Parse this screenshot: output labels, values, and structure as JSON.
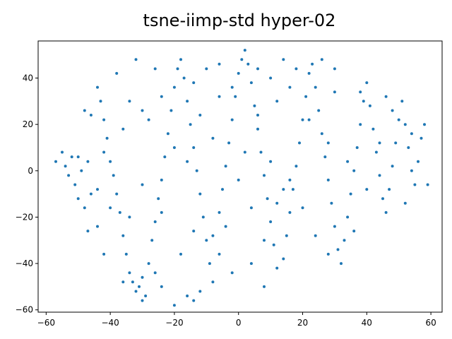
{
  "chart_data": {
    "type": "scatter",
    "title": "tsne-iimp-std hyper-02",
    "xlabel": "",
    "ylabel": "",
    "xlim": [
      -62.5,
      63.5
    ],
    "ylim": [
      -61,
      56
    ],
    "xticks": [
      -60,
      -40,
      -20,
      0,
      20,
      40,
      60
    ],
    "yticks": [
      -60,
      -40,
      -20,
      0,
      20,
      40
    ],
    "grid": false,
    "point_color": "#1f77b4",
    "series": [
      {
        "points": [
          [
            -57,
            4
          ],
          [
            -55,
            8
          ],
          [
            -54,
            2
          ],
          [
            -53,
            -2
          ],
          [
            -52,
            6
          ],
          [
            -51,
            -6
          ],
          [
            -50,
            -12
          ],
          [
            -49,
            0
          ],
          [
            -48,
            -16
          ],
          [
            -47,
            4
          ],
          [
            -48,
            26
          ],
          [
            -46,
            24
          ],
          [
            -47,
            -26
          ],
          [
            -44,
            -8
          ],
          [
            -44,
            36
          ],
          [
            -43,
            30
          ],
          [
            -42,
            22
          ],
          [
            -41,
            14
          ],
          [
            -40,
            4
          ],
          [
            -39,
            -2
          ],
          [
            -38,
            -10
          ],
          [
            -37,
            -18
          ],
          [
            -36,
            -28
          ],
          [
            -35,
            -36
          ],
          [
            -34,
            -44
          ],
          [
            -33,
            -48
          ],
          [
            -32,
            -52
          ],
          [
            -31,
            -50
          ],
          [
            -30,
            -46
          ],
          [
            -29,
            -54
          ],
          [
            -28,
            -40
          ],
          [
            -27,
            -30
          ],
          [
            -26,
            -22
          ],
          [
            -25,
            -12
          ],
          [
            -24,
            -4
          ],
          [
            -23,
            6
          ],
          [
            -22,
            16
          ],
          [
            -21,
            26
          ],
          [
            -20,
            36
          ],
          [
            -19,
            44
          ],
          [
            -18,
            48
          ],
          [
            -17,
            40
          ],
          [
            -16,
            30
          ],
          [
            -15,
            20
          ],
          [
            -14,
            10
          ],
          [
            -13,
            0
          ],
          [
            -12,
            -10
          ],
          [
            -11,
            -20
          ],
          [
            -10,
            -30
          ],
          [
            -9,
            -40
          ],
          [
            -8,
            -48
          ],
          [
            -16,
            -54
          ],
          [
            -14,
            -56
          ],
          [
            -12,
            -52
          ],
          [
            -20,
            -58
          ],
          [
            -24,
            -50
          ],
          [
            -8,
            -28
          ],
          [
            -6,
            -18
          ],
          [
            -5,
            -8
          ],
          [
            -4,
            2
          ],
          [
            -3,
            12
          ],
          [
            -2,
            22
          ],
          [
            -1,
            32
          ],
          [
            0,
            42
          ],
          [
            1,
            48
          ],
          [
            2,
            52
          ],
          [
            3,
            46
          ],
          [
            4,
            38
          ],
          [
            5,
            28
          ],
          [
            6,
            18
          ],
          [
            7,
            8
          ],
          [
            8,
            -2
          ],
          [
            9,
            -12
          ],
          [
            10,
            -22
          ],
          [
            11,
            -32
          ],
          [
            12,
            -42
          ],
          [
            8,
            -50
          ],
          [
            14,
            -38
          ],
          [
            15,
            -28
          ],
          [
            16,
            -18
          ],
          [
            17,
            -8
          ],
          [
            18,
            2
          ],
          [
            19,
            12
          ],
          [
            20,
            22
          ],
          [
            21,
            32
          ],
          [
            22,
            42
          ],
          [
            23,
            46
          ],
          [
            24,
            36
          ],
          [
            25,
            26
          ],
          [
            26,
            16
          ],
          [
            27,
            6
          ],
          [
            28,
            -4
          ],
          [
            29,
            -14
          ],
          [
            30,
            -24
          ],
          [
            31,
            -34
          ],
          [
            32,
            -40
          ],
          [
            33,
            -30
          ],
          [
            34,
            -20
          ],
          [
            35,
            -10
          ],
          [
            36,
            0
          ],
          [
            37,
            10
          ],
          [
            38,
            20
          ],
          [
            39,
            30
          ],
          [
            40,
            38
          ],
          [
            41,
            28
          ],
          [
            42,
            18
          ],
          [
            43,
            8
          ],
          [
            44,
            -2
          ],
          [
            45,
            -12
          ],
          [
            46,
            -18
          ],
          [
            47,
            -8
          ],
          [
            48,
            2
          ],
          [
            49,
            12
          ],
          [
            50,
            22
          ],
          [
            51,
            30
          ],
          [
            52,
            20
          ],
          [
            53,
            10
          ],
          [
            54,
            0
          ],
          [
            55,
            -6
          ],
          [
            56,
            4
          ],
          [
            57,
            14
          ],
          [
            58,
            20
          ],
          [
            59,
            -6
          ],
          [
            52,
            -14
          ],
          [
            46,
            32
          ],
          [
            38,
            34
          ],
          [
            30,
            44
          ],
          [
            26,
            48
          ],
          [
            18,
            44
          ],
          [
            10,
            40
          ],
          [
            -2,
            36
          ],
          [
            -10,
            44
          ],
          [
            -26,
            44
          ],
          [
            -32,
            48
          ],
          [
            -38,
            42
          ],
          [
            -34,
            30
          ],
          [
            -28,
            22
          ],
          [
            -20,
            10
          ],
          [
            -30,
            -6
          ],
          [
            -40,
            -16
          ],
          [
            -44,
            -24
          ],
          [
            -42,
            -36
          ],
          [
            -36,
            -48
          ],
          [
            -30,
            -56
          ],
          [
            -26,
            -44
          ],
          [
            -18,
            -36
          ],
          [
            -14,
            -26
          ],
          [
            -6,
            -36
          ],
          [
            -2,
            -44
          ],
          [
            4,
            -40
          ],
          [
            8,
            -30
          ],
          [
            12,
            -14
          ],
          [
            16,
            -4
          ],
          [
            4,
            -16
          ],
          [
            -4,
            -24
          ],
          [
            0,
            -4
          ],
          [
            2,
            8
          ],
          [
            -8,
            14
          ],
          [
            -12,
            24
          ],
          [
            -6,
            32
          ],
          [
            12,
            30
          ],
          [
            16,
            36
          ],
          [
            22,
            22
          ],
          [
            28,
            12
          ],
          [
            34,
            4
          ],
          [
            40,
            -8
          ],
          [
            44,
            12
          ],
          [
            48,
            26
          ],
          [
            54,
            16
          ],
          [
            36,
            -26
          ],
          [
            28,
            -36
          ],
          [
            24,
            -28
          ],
          [
            20,
            -16
          ],
          [
            14,
            -8
          ],
          [
            10,
            4
          ],
          [
            6,
            24
          ],
          [
            -16,
            4
          ],
          [
            -24,
            -18
          ],
          [
            -34,
            -20
          ],
          [
            -46,
            -10
          ],
          [
            -50,
            6
          ],
          [
            -42,
            8
          ],
          [
            -36,
            18
          ],
          [
            -30,
            26
          ],
          [
            -24,
            32
          ],
          [
            -14,
            38
          ],
          [
            -6,
            46
          ],
          [
            6,
            44
          ],
          [
            14,
            48
          ],
          [
            30,
            34
          ]
        ]
      }
    ]
  }
}
